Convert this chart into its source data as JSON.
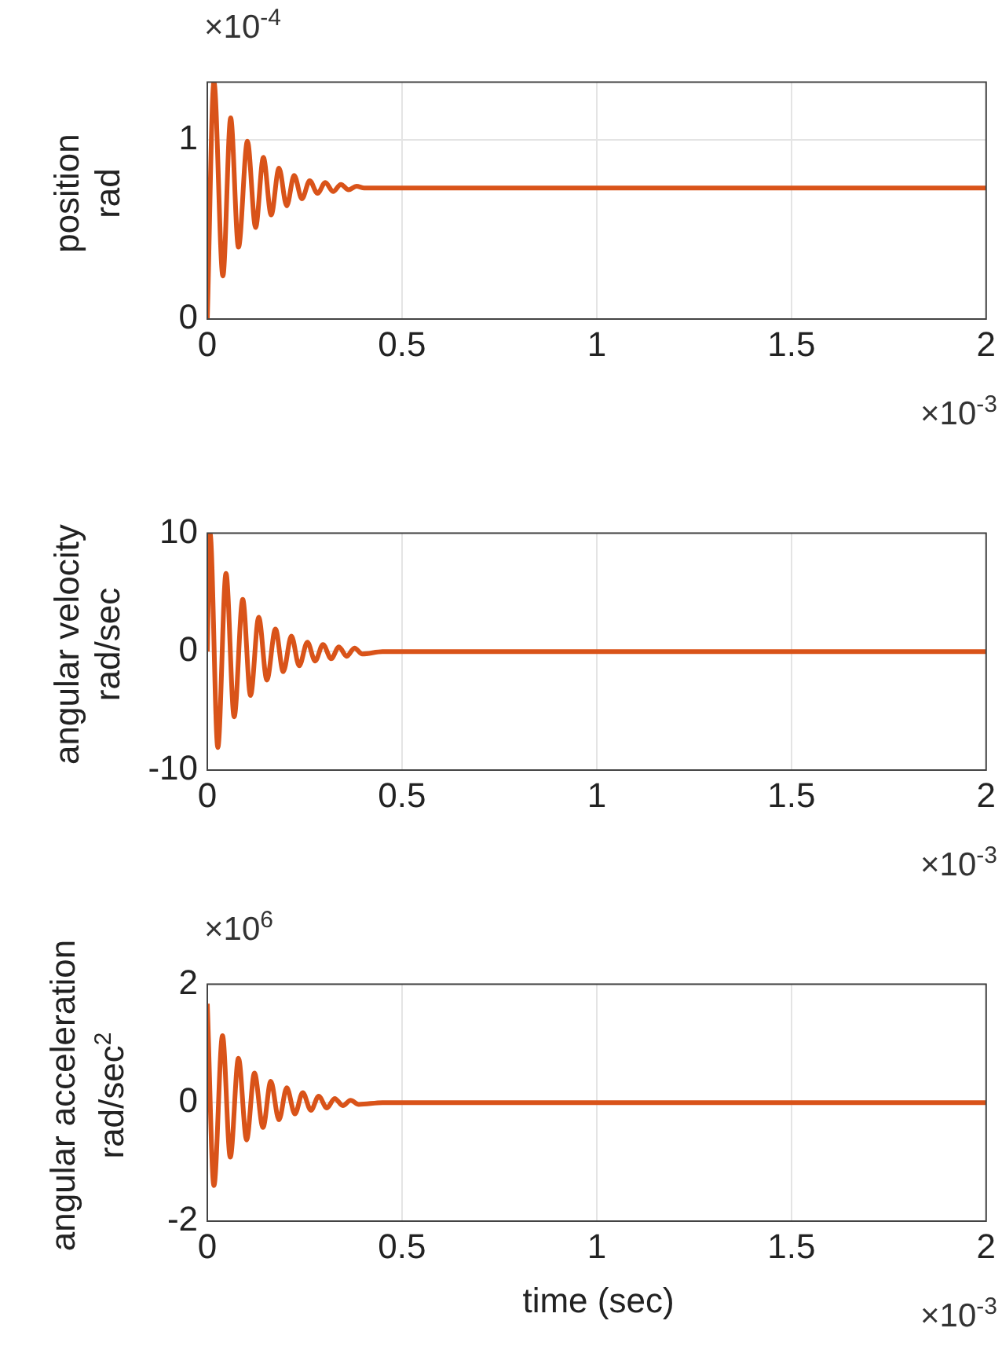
{
  "chart_data": [
    {
      "type": "line",
      "ylabel": "position\nrad",
      "annotations": [
        "×10$^{-4}$",
        "×10$^{-3}$"
      ],
      "color": "#d95319",
      "grid": true,
      "xlim": [
        0,
        2
      ],
      "xticks": [
        0,
        0.5,
        1,
        1.5,
        2
      ],
      "ylim": [
        0,
        1.32
      ],
      "yticks": [
        0,
        1
      ],
      "x": [
        0,
        0.017,
        0.04,
        0.06,
        0.08,
        0.103,
        0.124,
        0.144,
        0.164,
        0.184,
        0.204,
        0.223,
        0.243,
        0.263,
        0.283,
        0.303,
        0.323,
        0.343,
        0.363,
        0.383,
        0.403,
        0.45,
        0.5,
        1,
        1.5,
        2
      ],
      "values": [
        0,
        1.32,
        0.24,
        1.12,
        0.4,
        0.99,
        0.51,
        0.9,
        0.58,
        0.84,
        0.63,
        0.8,
        0.67,
        0.77,
        0.7,
        0.76,
        0.71,
        0.75,
        0.72,
        0.74,
        0.73,
        0.73,
        0.73,
        0.73,
        0.73,
        0.73
      ]
    },
    {
      "type": "line",
      "ylabel": "angular velocity\nrad/sec",
      "annotations": [
        "×10$^{-3}$"
      ],
      "color": "#d95319",
      "grid": true,
      "xlim": [
        0,
        2
      ],
      "xticks": [
        0,
        0.5,
        1,
        1.5,
        2
      ],
      "ylim": [
        -10,
        10
      ],
      "yticks": [
        -10,
        0,
        10
      ],
      "x": [
        0,
        0.007,
        0.027,
        0.048,
        0.069,
        0.091,
        0.111,
        0.132,
        0.153,
        0.175,
        0.195,
        0.216,
        0.236,
        0.257,
        0.277,
        0.297,
        0.318,
        0.338,
        0.358,
        0.378,
        0.398,
        0.45,
        0.5,
        1,
        1.5,
        2
      ],
      "values": [
        0,
        10,
        -8.1,
        6.6,
        -5.5,
        4.4,
        -3.7,
        2.9,
        -2.4,
        1.9,
        -1.7,
        1.3,
        -1.2,
        0.8,
        -0.8,
        0.6,
        -0.6,
        0.4,
        -0.4,
        0.3,
        -0.2,
        0,
        0,
        0,
        0,
        0
      ]
    },
    {
      "type": "line",
      "ylabel": "angular acceleration\nrad/sec$^{2}$",
      "xlabel": "time (sec)",
      "annotations": [
        "×10$^{6}$",
        "×10$^{-3}$"
      ],
      "color": "#d95319",
      "grid": true,
      "xlim": [
        0,
        2
      ],
      "xticks": [
        0,
        0.5,
        1,
        1.5,
        2
      ],
      "ylim": [
        -2,
        2
      ],
      "yticks": [
        -2,
        0,
        2
      ],
      "x": [
        0,
        0.017,
        0.039,
        0.059,
        0.08,
        0.101,
        0.121,
        0.143,
        0.163,
        0.184,
        0.204,
        0.225,
        0.245,
        0.266,
        0.286,
        0.307,
        0.327,
        0.348,
        0.368,
        0.389,
        0.45,
        0.5,
        1,
        1.5,
        2
      ],
      "values": [
        1.67,
        -1.4,
        1.13,
        -0.92,
        0.75,
        -0.63,
        0.5,
        -0.42,
        0.36,
        -0.29,
        0.25,
        -0.19,
        0.17,
        -0.13,
        0.11,
        -0.09,
        0.07,
        -0.05,
        0.04,
        -0.03,
        0,
        0,
        0,
        0,
        0
      ]
    }
  ]
}
